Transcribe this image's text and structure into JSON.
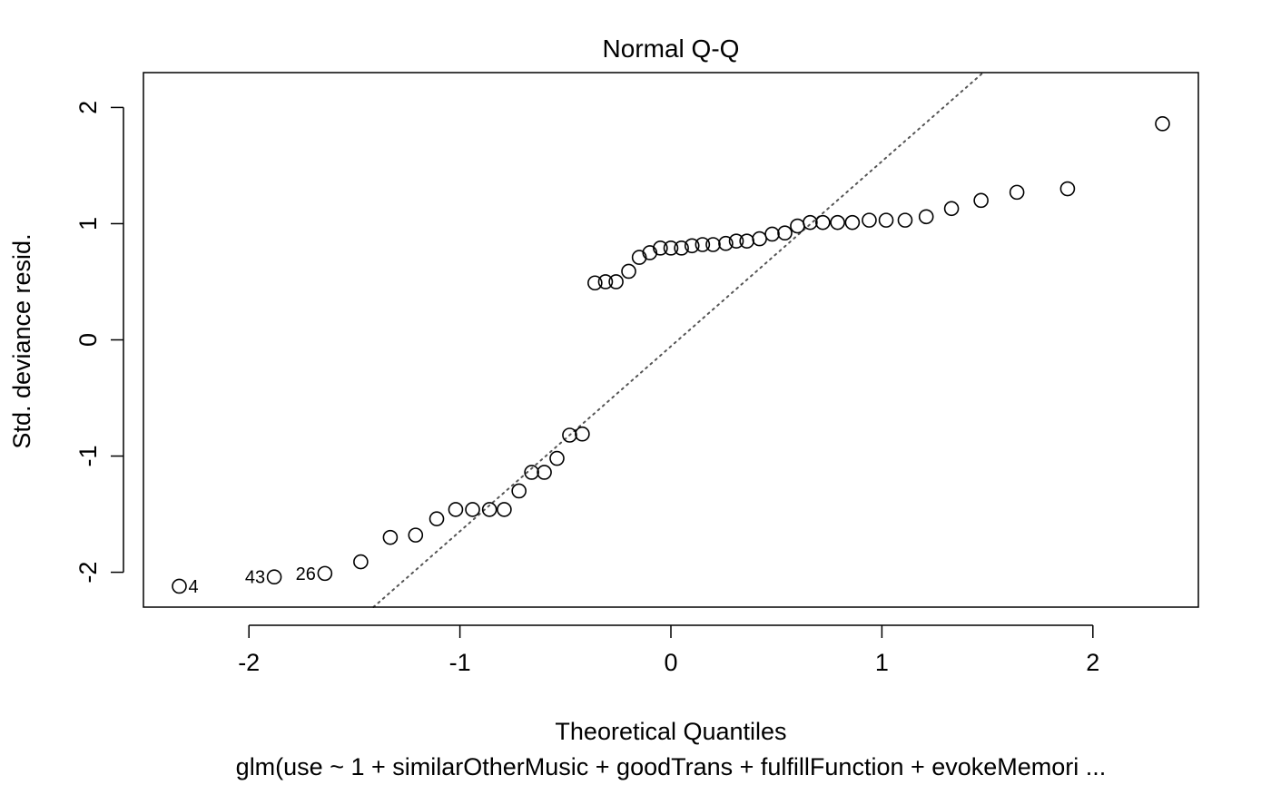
{
  "chart_data": {
    "type": "scatter",
    "title": "Normal Q-Q",
    "xlabel": "Theoretical Quantiles",
    "ylabel": "Std. deviance resid.",
    "subtitle": "glm(use ~ 1 + similarOtherMusic + goodTrans + fulfillFunction + evokeMemori ...",
    "xlim": [
      -2.5,
      2.5
    ],
    "ylim": [
      -2.3,
      2.3
    ],
    "x_ticks": [
      {
        "value": -2,
        "label": "-2"
      },
      {
        "value": -1,
        "label": "-1"
      },
      {
        "value": 0,
        "label": "0"
      },
      {
        "value": 1,
        "label": "1"
      },
      {
        "value": 2,
        "label": "2"
      }
    ],
    "y_ticks": [
      {
        "value": -2,
        "label": "-2"
      },
      {
        "value": -1,
        "label": "-1"
      },
      {
        "value": 0,
        "label": "0"
      },
      {
        "value": 1,
        "label": "1"
      },
      {
        "value": 2,
        "label": "2"
      }
    ],
    "grid": false,
    "reference_line": {
      "style": "dotted",
      "color": "#555555",
      "x": [
        -1.41,
        1.48
      ],
      "y": [
        -2.3,
        2.3
      ]
    },
    "points": [
      {
        "x": -2.33,
        "y": -2.12,
        "label": "4",
        "label_side": "right"
      },
      {
        "x": -1.88,
        "y": -2.04,
        "label": "43",
        "label_side": "left"
      },
      {
        "x": -1.64,
        "y": -2.01,
        "label": "26",
        "label_side": "left"
      },
      {
        "x": -1.47,
        "y": -1.91
      },
      {
        "x": -1.33,
        "y": -1.7
      },
      {
        "x": -1.21,
        "y": -1.68
      },
      {
        "x": -1.11,
        "y": -1.54
      },
      {
        "x": -1.02,
        "y": -1.46
      },
      {
        "x": -0.94,
        "y": -1.46
      },
      {
        "x": -0.86,
        "y": -1.46
      },
      {
        "x": -0.79,
        "y": -1.46
      },
      {
        "x": -0.72,
        "y": -1.3
      },
      {
        "x": -0.66,
        "y": -1.14
      },
      {
        "x": -0.6,
        "y": -1.14
      },
      {
        "x": -0.54,
        "y": -1.02
      },
      {
        "x": -0.48,
        "y": -0.82
      },
      {
        "x": -0.42,
        "y": -0.81
      },
      {
        "x": -0.36,
        "y": 0.49
      },
      {
        "x": -0.31,
        "y": 0.5
      },
      {
        "x": -0.26,
        "y": 0.5
      },
      {
        "x": -0.2,
        "y": 0.59
      },
      {
        "x": -0.15,
        "y": 0.71
      },
      {
        "x": -0.1,
        "y": 0.75
      },
      {
        "x": -0.05,
        "y": 0.79
      },
      {
        "x": 0.0,
        "y": 0.79
      },
      {
        "x": 0.05,
        "y": 0.79
      },
      {
        "x": 0.1,
        "y": 0.81
      },
      {
        "x": 0.15,
        "y": 0.82
      },
      {
        "x": 0.2,
        "y": 0.82
      },
      {
        "x": 0.26,
        "y": 0.83
      },
      {
        "x": 0.31,
        "y": 0.85
      },
      {
        "x": 0.36,
        "y": 0.85
      },
      {
        "x": 0.42,
        "y": 0.87
      },
      {
        "x": 0.48,
        "y": 0.91
      },
      {
        "x": 0.54,
        "y": 0.92
      },
      {
        "x": 0.6,
        "y": 0.98
      },
      {
        "x": 0.66,
        "y": 1.01
      },
      {
        "x": 0.72,
        "y": 1.01
      },
      {
        "x": 0.79,
        "y": 1.01
      },
      {
        "x": 0.86,
        "y": 1.01
      },
      {
        "x": 0.94,
        "y": 1.03
      },
      {
        "x": 1.02,
        "y": 1.03
      },
      {
        "x": 1.11,
        "y": 1.03
      },
      {
        "x": 1.21,
        "y": 1.06
      },
      {
        "x": 1.33,
        "y": 1.13
      },
      {
        "x": 1.47,
        "y": 1.2
      },
      {
        "x": 1.64,
        "y": 1.27
      },
      {
        "x": 1.88,
        "y": 1.3
      },
      {
        "x": 2.33,
        "y": 1.86
      }
    ]
  }
}
